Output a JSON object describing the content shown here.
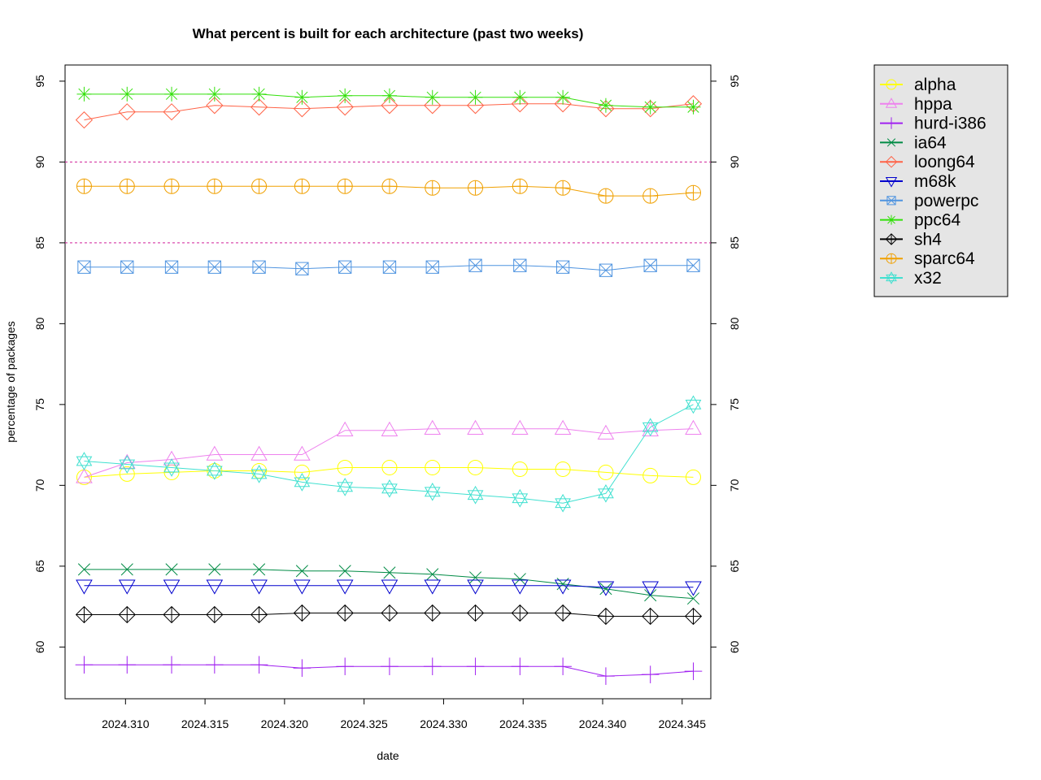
{
  "chart_data": {
    "type": "line",
    "title": "What percent is built for each architecture (past two weeks)",
    "xlabel": "date",
    "ylabel": "percentage of packages",
    "xlim": [
      2024.3062,
      2024.3468
    ],
    "ylim": [
      56.8,
      96.0
    ],
    "x_ticks": [
      2024.31,
      2024.315,
      2024.32,
      2024.325,
      2024.33,
      2024.335,
      2024.34,
      2024.345
    ],
    "x_tick_labels": [
      "2024.310",
      "2024.315",
      "2024.320",
      "2024.325",
      "2024.330",
      "2024.335",
      "2024.340",
      "2024.345"
    ],
    "y_ticks": [
      60,
      65,
      70,
      75,
      80,
      85,
      90,
      95
    ],
    "y_tick_labels": [
      "60",
      "65",
      "70",
      "75",
      "80",
      "85",
      "90",
      "95"
    ],
    "reference_lines": [
      85,
      90
    ],
    "reference_color": "#d0209a",
    "legend_position": "top-right",
    "grid": false,
    "x": [
      2024.3074,
      2024.3101,
      2024.3129,
      2024.3156,
      2024.3184,
      2024.3211,
      2024.3238,
      2024.3266,
      2024.3293,
      2024.332,
      2024.3348,
      2024.3375,
      2024.3402,
      2024.343,
      2024.3457
    ],
    "series": [
      {
        "name": "alpha",
        "color": "#ffff00",
        "marker": "circle",
        "values": [
          70.5,
          70.7,
          70.8,
          70.9,
          70.9,
          70.8,
          71.1,
          71.1,
          71.1,
          71.1,
          71.0,
          71.0,
          70.8,
          70.6,
          70.5
        ]
      },
      {
        "name": "hppa",
        "color": "#ee82ee",
        "marker": "triangle-up",
        "values": [
          70.5,
          71.4,
          71.6,
          71.9,
          71.9,
          71.9,
          73.4,
          73.4,
          73.5,
          73.5,
          73.5,
          73.5,
          73.2,
          73.4,
          73.5
        ]
      },
      {
        "name": "hurd-i386",
        "color": "#a020f0",
        "marker": "plus",
        "values": [
          58.9,
          58.9,
          58.9,
          58.9,
          58.9,
          58.7,
          58.8,
          58.8,
          58.8,
          58.8,
          58.8,
          58.8,
          58.2,
          58.3,
          58.5
        ]
      },
      {
        "name": "ia64",
        "color": "#008b45",
        "marker": "cross",
        "values": [
          64.8,
          64.8,
          64.8,
          64.8,
          64.8,
          64.7,
          64.7,
          64.6,
          64.5,
          64.3,
          64.2,
          63.9,
          63.6,
          63.2,
          63.0
        ]
      },
      {
        "name": "loong64",
        "color": "#ff6347",
        "marker": "diamond",
        "values": [
          92.6,
          93.1,
          93.1,
          93.5,
          93.4,
          93.3,
          93.4,
          93.5,
          93.5,
          93.5,
          93.6,
          93.6,
          93.3,
          93.3,
          93.6
        ]
      },
      {
        "name": "m68k",
        "color": "#0000cd",
        "marker": "triangle-down",
        "values": [
          63.8,
          63.8,
          63.8,
          63.8,
          63.8,
          63.8,
          63.8,
          63.8,
          63.8,
          63.8,
          63.8,
          63.8,
          63.7,
          63.7,
          63.7
        ]
      },
      {
        "name": "powerpc",
        "color": "#4f94e0",
        "marker": "square-cross",
        "values": [
          83.5,
          83.5,
          83.5,
          83.5,
          83.5,
          83.4,
          83.5,
          83.5,
          83.5,
          83.6,
          83.6,
          83.5,
          83.3,
          83.6,
          83.6
        ]
      },
      {
        "name": "ppc64",
        "color": "#32e00a",
        "marker": "asterisk",
        "values": [
          94.2,
          94.2,
          94.2,
          94.2,
          94.2,
          94.0,
          94.1,
          94.1,
          94.0,
          94.0,
          94.0,
          94.0,
          93.5,
          93.4,
          93.4
        ]
      },
      {
        "name": "sh4",
        "color": "#000000",
        "marker": "diamond-plus",
        "values": [
          62.0,
          62.0,
          62.0,
          62.0,
          62.0,
          62.1,
          62.1,
          62.1,
          62.1,
          62.1,
          62.1,
          62.1,
          61.9,
          61.9,
          61.9
        ]
      },
      {
        "name": "sparc64",
        "color": "#f0a000",
        "marker": "circle-plus",
        "values": [
          88.5,
          88.5,
          88.5,
          88.5,
          88.5,
          88.5,
          88.5,
          88.5,
          88.4,
          88.4,
          88.5,
          88.4,
          87.9,
          87.9,
          88.1
        ]
      },
      {
        "name": "x32",
        "color": "#40e0d0",
        "marker": "star-of-david",
        "values": [
          71.5,
          71.3,
          71.1,
          70.9,
          70.7,
          70.2,
          69.9,
          69.8,
          69.6,
          69.4,
          69.2,
          68.9,
          69.5,
          73.6,
          75.0
        ]
      }
    ]
  }
}
